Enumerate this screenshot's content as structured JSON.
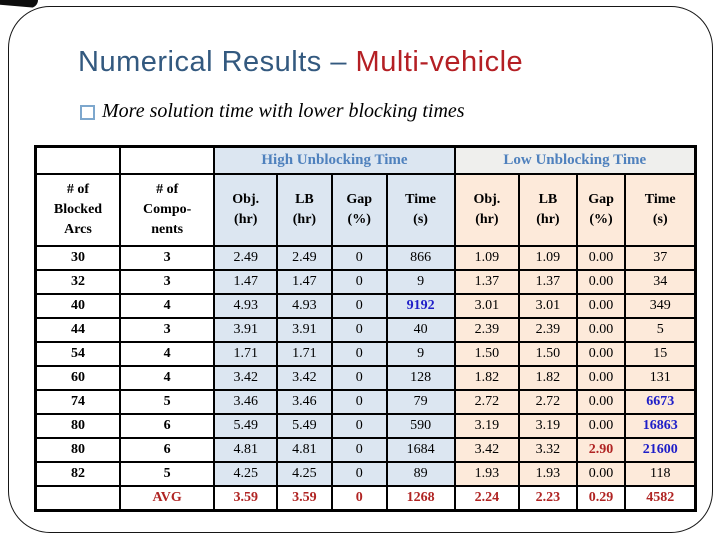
{
  "title": {
    "primary": "Numerical Results – ",
    "accent": "Multi-vehicle"
  },
  "bullet": "More solution time with lower blocking times",
  "table": {
    "groups": [
      "High Unblocking Time",
      "Low Unblocking Time"
    ],
    "columns": [
      "# of\nBlocked\nArcs",
      "# of\nCompo-\nnents",
      "Obj.\n(hr)",
      "LB\n(hr)",
      "Gap\n(%)",
      "Time\n(s)",
      "Obj.\n(hr)",
      "LB\n(hr)",
      "Gap\n(%)",
      "Time\n(s)"
    ],
    "rows": [
      [
        "30",
        "3",
        "2.49",
        "2.49",
        "0",
        "866",
        "1.09",
        "1.09",
        "0.00",
        "37"
      ],
      [
        "32",
        "3",
        "1.47",
        "1.47",
        "0",
        "9",
        "1.37",
        "1.37",
        "0.00",
        "34"
      ],
      [
        "40",
        "4",
        "4.93",
        "4.93",
        "0",
        "9192",
        "3.01",
        "3.01",
        "0.00",
        "349"
      ],
      [
        "44",
        "3",
        "3.91",
        "3.91",
        "0",
        "40",
        "2.39",
        "2.39",
        "0.00",
        "5"
      ],
      [
        "54",
        "4",
        "1.71",
        "1.71",
        "0",
        "9",
        "1.50",
        "1.50",
        "0.00",
        "15"
      ],
      [
        "60",
        "4",
        "3.42",
        "3.42",
        "0",
        "128",
        "1.82",
        "1.82",
        "0.00",
        "131"
      ],
      [
        "74",
        "5",
        "3.46",
        "3.46",
        "0",
        "79",
        "2.72",
        "2.72",
        "0.00",
        "6673"
      ],
      [
        "80",
        "6",
        "5.49",
        "5.49",
        "0",
        "590",
        "3.19",
        "3.19",
        "0.00",
        "16863"
      ],
      [
        "80",
        "6",
        "4.81",
        "4.81",
        "0",
        "1684",
        "3.42",
        "3.32",
        "2.90",
        "21600"
      ],
      [
        "82",
        "5",
        "4.25",
        "4.25",
        "0",
        "89",
        "1.93",
        "1.93",
        "0.00",
        "118"
      ]
    ],
    "avg_row": [
      "",
      "AVG",
      "3.59",
      "3.59",
      "0",
      "1268",
      "2.24",
      "2.23",
      "0.29",
      "4582"
    ],
    "highlight_blue": [
      [
        2,
        5
      ],
      [
        6,
        9
      ],
      [
        7,
        9
      ],
      [
        8,
        9
      ]
    ],
    "highlight_red": [
      [
        8,
        8
      ]
    ]
  },
  "colors": {
    "title_blue": "#33597f",
    "title_red": "#b41f24",
    "header_blue_text": "#4f81bd",
    "high_bg": "#dce6f1",
    "low_bg": "#fdeada",
    "low_header_bg": "#efefed",
    "value_blue": "#1e1ec8",
    "value_red": "#b02423",
    "bullet_square": "#7da7cd"
  }
}
